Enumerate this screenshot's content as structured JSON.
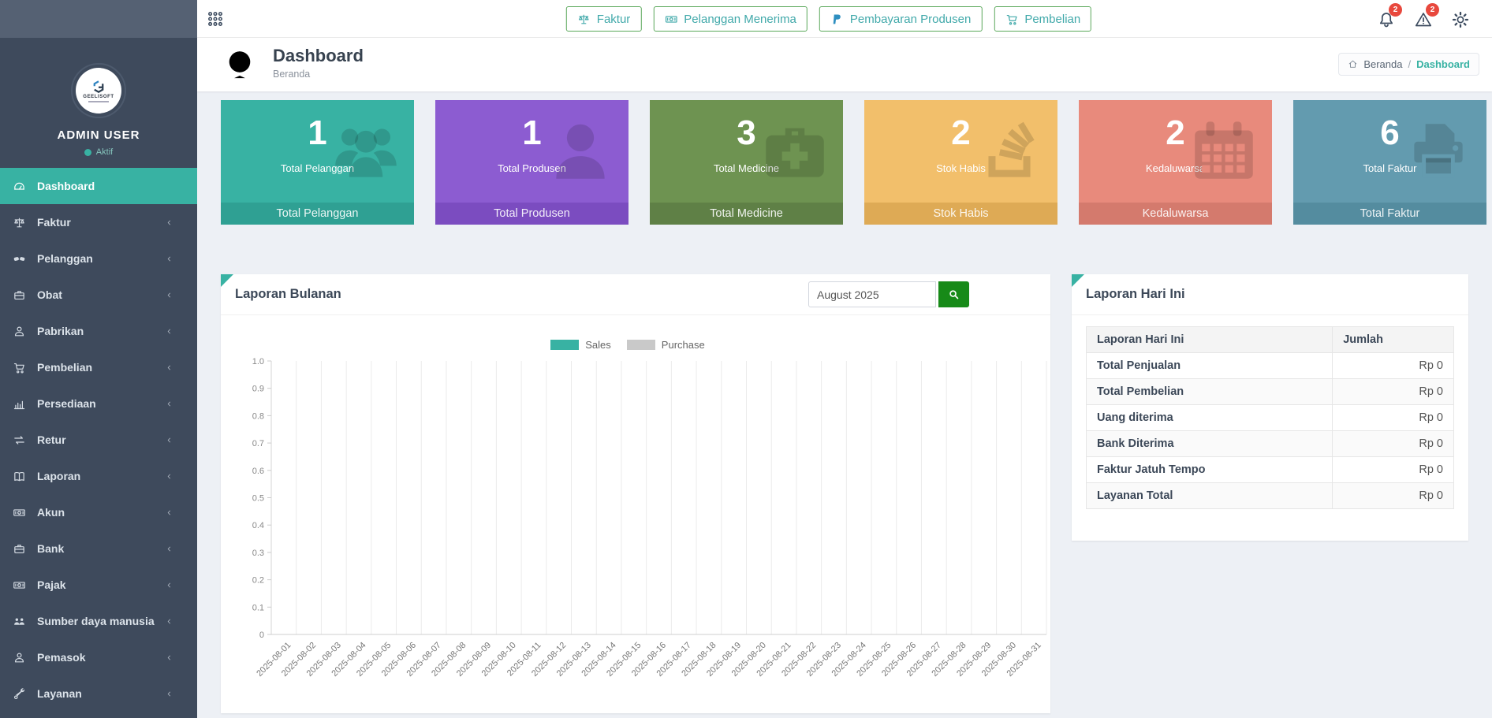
{
  "colors": {
    "accent": "#38b2a3",
    "sidebar_bg": "#3e4a5c",
    "sidebar_top_bg": "#556173",
    "badge_red": "#e8483d",
    "button_border_green": "#5aa85a",
    "button_text_teal": "#41a9aa",
    "search_button_green": "#178a18",
    "page_bg": "#edf0f5"
  },
  "sidebar": {
    "logo_text": "GEELISOFT",
    "user_name": "ADMIN USER",
    "user_status": "Aktif",
    "items": [
      {
        "label": "Dashboard",
        "icon": "dashboard-icon",
        "active": true,
        "chevron": false
      },
      {
        "label": "Faktur",
        "icon": "scale-icon",
        "active": false,
        "chevron": true
      },
      {
        "label": "Pelanggan",
        "icon": "handshake-icon",
        "active": false,
        "chevron": true
      },
      {
        "label": "Obat",
        "icon": "briefcase-icon",
        "active": false,
        "chevron": true
      },
      {
        "label": "Pabrikan",
        "icon": "user-icon",
        "active": false,
        "chevron": true
      },
      {
        "label": "Pembelian",
        "icon": "cart-icon",
        "active": false,
        "chevron": true
      },
      {
        "label": "Persediaan",
        "icon": "bar-chart-icon",
        "active": false,
        "chevron": true
      },
      {
        "label": "Retur",
        "icon": "exchange-icon",
        "active": false,
        "chevron": true
      },
      {
        "label": "Laporan",
        "icon": "book-icon",
        "active": false,
        "chevron": true
      },
      {
        "label": "Akun",
        "icon": "money-icon",
        "active": false,
        "chevron": true
      },
      {
        "label": "Bank",
        "icon": "briefcase-icon",
        "active": false,
        "chevron": true
      },
      {
        "label": "Pajak",
        "icon": "money-icon",
        "active": false,
        "chevron": true
      },
      {
        "label": "Sumber daya manusia",
        "icon": "users-icon",
        "active": false,
        "chevron": true
      },
      {
        "label": "Pemasok",
        "icon": "user-icon",
        "active": false,
        "chevron": true
      },
      {
        "label": "Layanan",
        "icon": "tools-icon",
        "active": false,
        "chevron": true
      },
      {
        "label": "",
        "icon": "circle-icon",
        "active": false,
        "chevron": false,
        "partial": true
      }
    ]
  },
  "header": {
    "quick_buttons": [
      {
        "label": "Faktur",
        "icon": "scale-icon"
      },
      {
        "label": "Pelanggan Menerima",
        "icon": "money-icon"
      },
      {
        "label": "Pembayaran Produsen",
        "icon": "paypal-icon"
      },
      {
        "label": "Pembelian",
        "icon": "cart-icon"
      }
    ],
    "notifications": [
      {
        "icon": "bell-icon",
        "badge": "2"
      },
      {
        "icon": "warning-icon",
        "badge": "2"
      },
      {
        "icon": "gear-icon",
        "badge": ""
      }
    ]
  },
  "page": {
    "title": "Dashboard",
    "subtitle": "Beranda",
    "breadcrumb": {
      "home": "Beranda",
      "separator": "/",
      "current": "Dashboard"
    }
  },
  "stat_cards": [
    {
      "value": "1",
      "label": "Total Pelanggan",
      "footer": "Total Pelanggan",
      "icon": "users-icon",
      "bg": "#38b2a3",
      "footer_bg": "#2fa093"
    },
    {
      "value": "1",
      "label": "Total Produsen",
      "footer": "Total Produsen",
      "icon": "user-icon",
      "bg": "#8c5cd1",
      "footer_bg": "#7b4cc0"
    },
    {
      "value": "3",
      "label": "Total Medicine",
      "footer": "Total Medicine",
      "icon": "medkit-icon",
      "bg": "#6e9351",
      "footer_bg": "#5f8046"
    },
    {
      "value": "2",
      "label": "Stok Habis",
      "footer": "Stok Habis",
      "icon": "stack-icon",
      "bg": "#f2bf6b",
      "footer_bg": "#deaa55"
    },
    {
      "value": "2",
      "label": "Kedaluwarsa",
      "footer": "Kedaluwarsa",
      "icon": "calendar-icon",
      "bg": "#e88a7c",
      "footer_bg": "#d47a6d"
    },
    {
      "value": "6",
      "label": "Total Faktur",
      "footer": "Total Faktur",
      "icon": "print-icon",
      "bg": "#639baf",
      "footer_bg": "#548c9f"
    }
  ],
  "monthly_panel": {
    "title": "Laporan Bulanan",
    "month_value": "August 2025"
  },
  "chart_data": {
    "type": "bar",
    "title": "Laporan Bulanan",
    "xlabel": "",
    "ylabel": "",
    "ylim": [
      0,
      1.0
    ],
    "ytick_labels": [
      "0",
      "0.1",
      "0.2",
      "0.3",
      "0.4",
      "0.5",
      "0.6",
      "0.7",
      "0.8",
      "0.9",
      "1.0"
    ],
    "grid": "vertical",
    "legend_position": "top",
    "x": [
      "2025-08-01",
      "2025-08-02",
      "2025-08-03",
      "2025-08-04",
      "2025-08-05",
      "2025-08-06",
      "2025-08-07",
      "2025-08-08",
      "2025-08-09",
      "2025-08-10",
      "2025-08-11",
      "2025-08-12",
      "2025-08-13",
      "2025-08-14",
      "2025-08-15",
      "2025-08-16",
      "2025-08-17",
      "2025-08-18",
      "2025-08-19",
      "2025-08-20",
      "2025-08-21",
      "2025-08-22",
      "2025-08-23",
      "2025-08-24",
      "2025-08-25",
      "2025-08-26",
      "2025-08-27",
      "2025-08-28",
      "2025-08-29",
      "2025-08-30",
      "2025-08-31"
    ],
    "series": [
      {
        "name": "Sales",
        "color": "#38b2a3",
        "values": [
          0,
          0,
          0,
          0,
          0,
          0,
          0,
          0,
          0,
          0,
          0,
          0,
          0,
          0,
          0,
          0,
          0,
          0,
          0,
          0,
          0,
          0,
          0,
          0,
          0,
          0,
          0,
          0,
          0,
          0,
          0
        ]
      },
      {
        "name": "Purchase",
        "color": "#c9c9c9",
        "values": [
          0,
          0,
          0,
          0,
          0,
          0,
          0,
          0,
          0,
          0,
          0,
          0,
          0,
          0,
          0,
          0,
          0,
          0,
          0,
          0,
          0,
          0,
          0,
          0,
          0,
          0,
          0,
          0,
          0,
          0,
          0
        ]
      }
    ]
  },
  "today_panel": {
    "title": "Laporan Hari Ini",
    "headers": [
      "Laporan Hari Ini",
      "Jumlah"
    ],
    "rows": [
      [
        "Total Penjualan",
        "Rp 0"
      ],
      [
        "Total Pembelian",
        "Rp 0"
      ],
      [
        "Uang diterima",
        "Rp 0"
      ],
      [
        "Bank Diterima",
        "Rp 0"
      ],
      [
        "Faktur Jatuh Tempo",
        "Rp 0"
      ],
      [
        "Layanan Total",
        "Rp 0"
      ]
    ]
  }
}
